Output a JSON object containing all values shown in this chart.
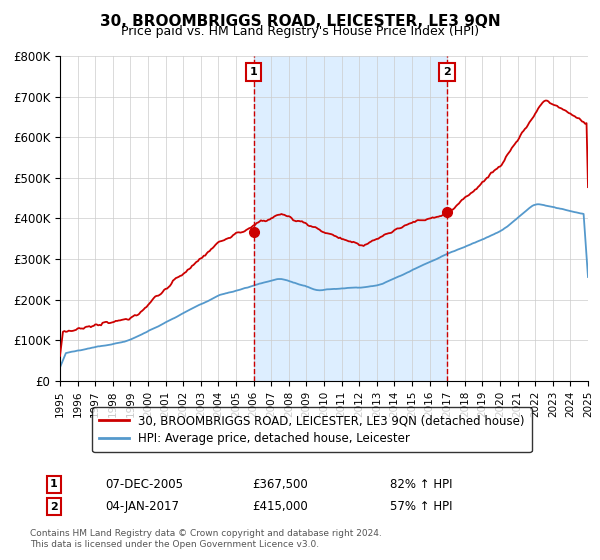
{
  "title": "30, BROOMBRIGGS ROAD, LEICESTER, LE3 9QN",
  "subtitle": "Price paid vs. HM Land Registry's House Price Index (HPI)",
  "ylim": [
    0,
    800000
  ],
  "yticks": [
    0,
    100000,
    200000,
    300000,
    400000,
    500000,
    600000,
    700000,
    800000
  ],
  "ytick_labels": [
    "£0",
    "£100K",
    "£200K",
    "£300K",
    "£400K",
    "£500K",
    "£600K",
    "£700K",
    "£800K"
  ],
  "red_color": "#cc0000",
  "blue_color": "#5599cc",
  "shade_color": "#ddeeff",
  "sale1_year": 2006.0,
  "sale1_price": 367500,
  "sale1_label": "1",
  "sale1_date": "07-DEC-2005",
  "sale1_amount": "£367,500",
  "sale1_hpi": "82% ↑ HPI",
  "sale2_year": 2017.0,
  "sale2_price": 415000,
  "sale2_label": "2",
  "sale2_date": "04-JAN-2017",
  "sale2_amount": "£415,000",
  "sale2_hpi": "57% ↑ HPI",
  "legend_label_red": "30, BROOMBRIGGS ROAD, LEICESTER, LE3 9QN (detached house)",
  "legend_label_blue": "HPI: Average price, detached house, Leicester",
  "footnote": "Contains HM Land Registry data © Crown copyright and database right 2024.\nThis data is licensed under the Open Government Licence v3.0.",
  "xstart": 1995,
  "xend": 2025
}
